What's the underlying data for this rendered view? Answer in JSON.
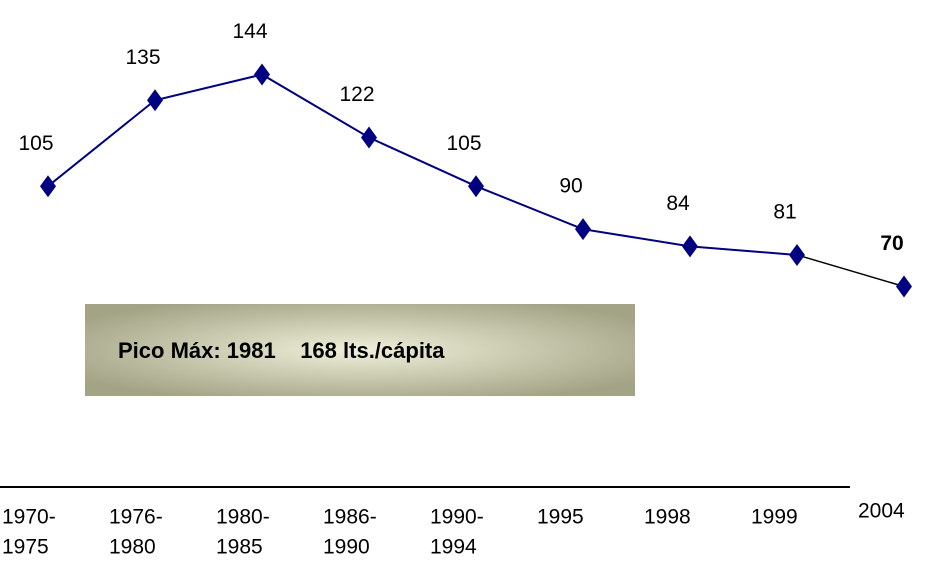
{
  "chart_data": {
    "type": "line",
    "categories": [
      [
        "1970-",
        "1975"
      ],
      [
        "1976-",
        "1980"
      ],
      [
        "1980-",
        "1985"
      ],
      [
        "1986-",
        "1990"
      ],
      [
        "1990-",
        "1994"
      ],
      [
        "1995"
      ],
      [
        "1998"
      ],
      [
        "1999"
      ],
      [
        "2004"
      ]
    ],
    "series": [
      {
        "color": "#000080",
        "values": [
          105,
          135,
          144,
          122,
          105,
          90,
          84,
          81,
          70
        ]
      }
    ],
    "highlight_color": "#000000",
    "ylim": [
      0,
      170
    ],
    "annotation": "Pico Máx: 1981    168 lts./cápita"
  }
}
